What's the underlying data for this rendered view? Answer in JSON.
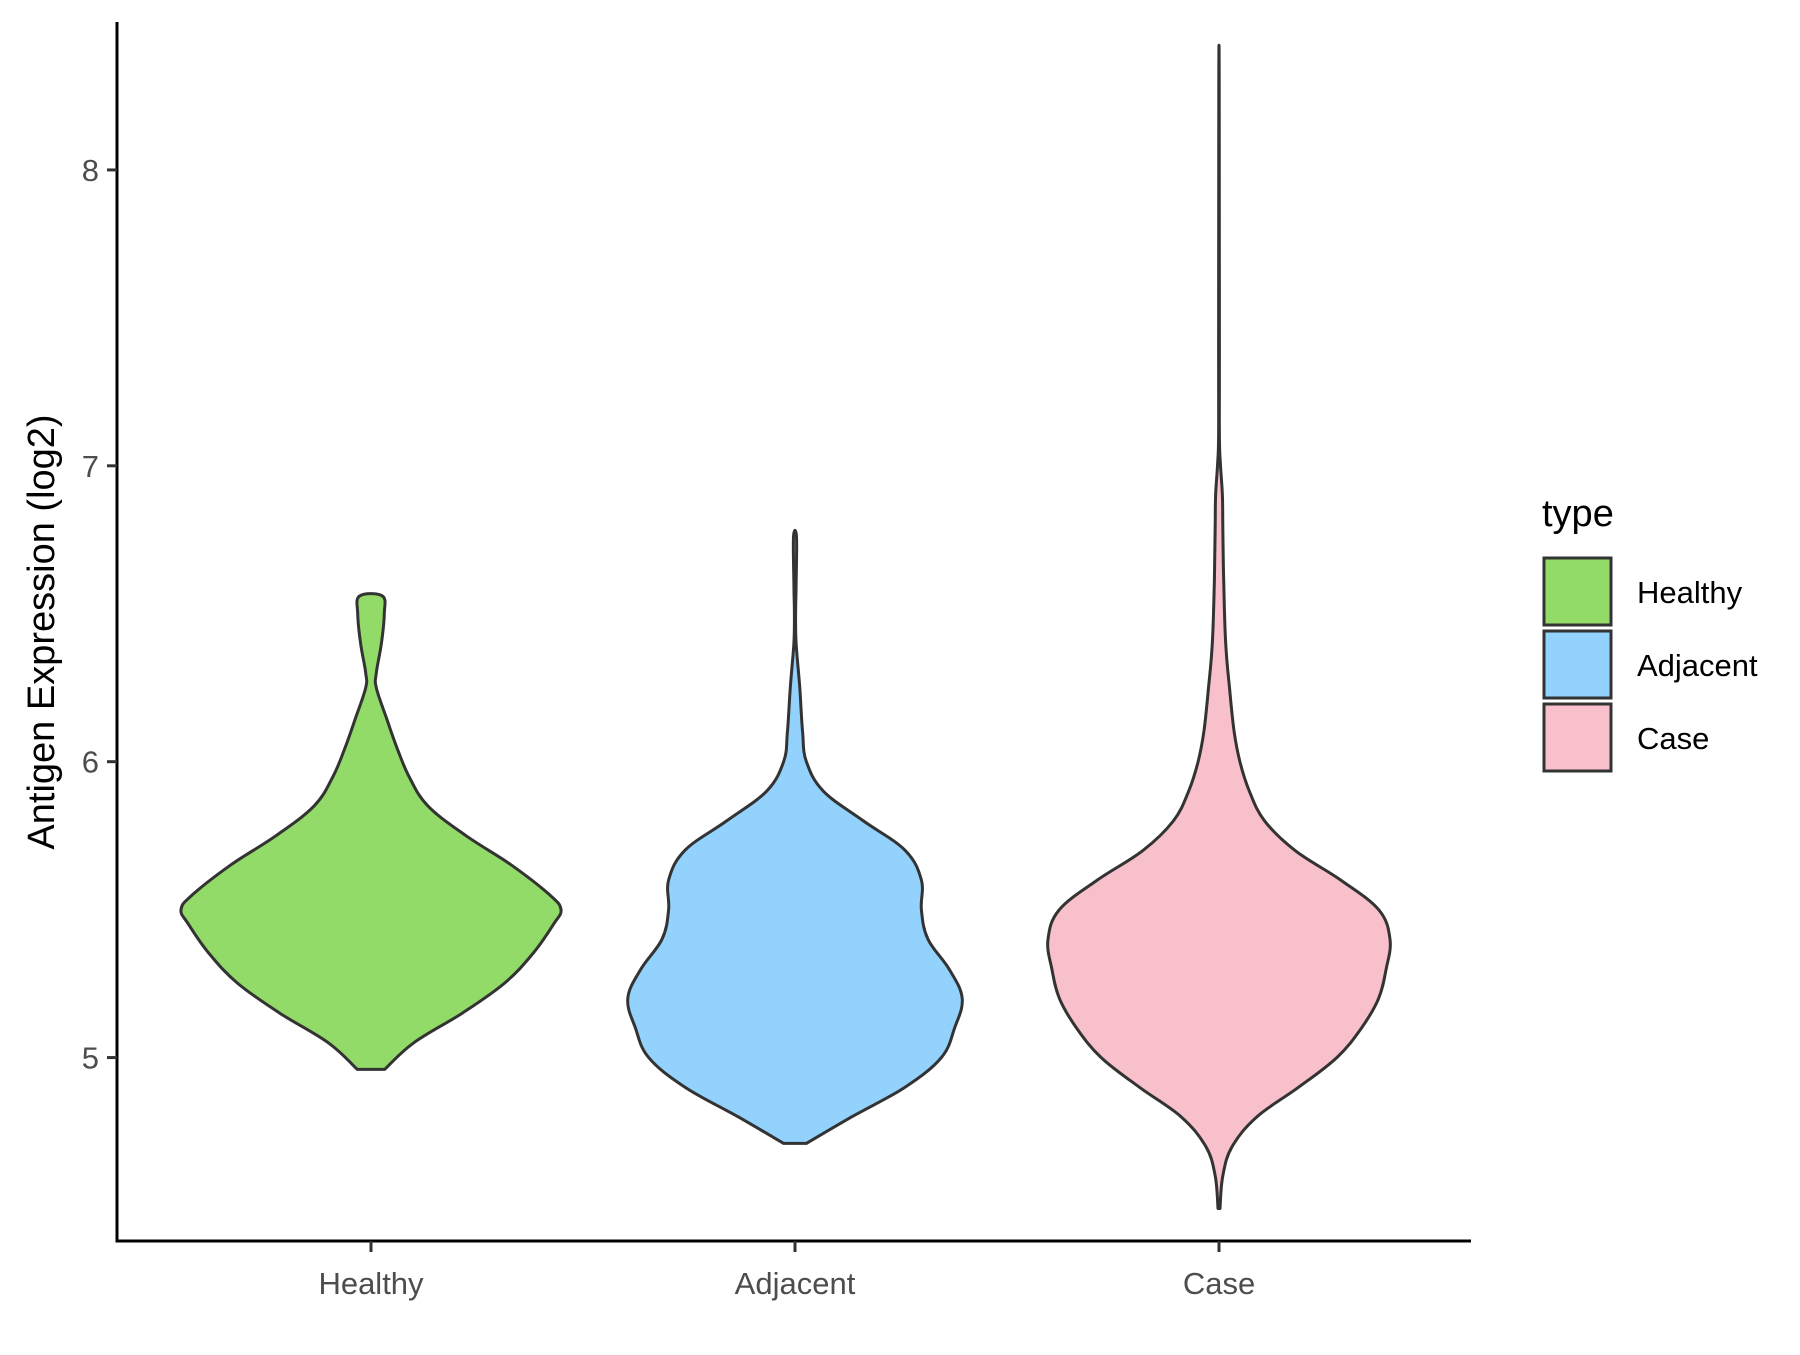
{
  "chart_data": {
    "type": "violin",
    "xlabel": "",
    "ylabel": "Antigen Expression (log2)",
    "categories": [
      "Healthy",
      "Adjacent",
      "Case"
    ],
    "ylim": [
      4.38,
      8.5
    ],
    "yticks": [
      5,
      6,
      7,
      8
    ],
    "legend": {
      "title": "type",
      "placement": "right",
      "entries": [
        "Healthy",
        "Adjacent",
        "Case"
      ]
    },
    "grid": false,
    "series": [
      {
        "category": "Healthy",
        "color": "#93db69",
        "min": 4.96,
        "max": 6.56,
        "density": [
          [
            4.96,
            0.072
          ],
          [
            5.05,
            0.225
          ],
          [
            5.15,
            0.48
          ],
          [
            5.25,
            0.7
          ],
          [
            5.35,
            0.85
          ],
          [
            5.45,
            0.96
          ],
          [
            5.5,
            1.0
          ],
          [
            5.55,
            0.94
          ],
          [
            5.65,
            0.74
          ],
          [
            5.75,
            0.5
          ],
          [
            5.85,
            0.3
          ],
          [
            5.95,
            0.2
          ],
          [
            6.05,
            0.135
          ],
          [
            6.15,
            0.08
          ],
          [
            6.25,
            0.028
          ],
          [
            6.3,
            0.028
          ],
          [
            6.4,
            0.055
          ],
          [
            6.5,
            0.07
          ],
          [
            6.56,
            0.06
          ]
        ]
      },
      {
        "category": "Adjacent",
        "color": "#92d2fd",
        "min": 4.71,
        "max": 6.76,
        "density": [
          [
            4.71,
            0.06
          ],
          [
            4.8,
            0.3
          ],
          [
            4.9,
            0.58
          ],
          [
            5.0,
            0.77
          ],
          [
            5.1,
            0.84
          ],
          [
            5.2,
            0.88
          ],
          [
            5.3,
            0.81
          ],
          [
            5.4,
            0.7
          ],
          [
            5.5,
            0.665
          ],
          [
            5.6,
            0.665
          ],
          [
            5.7,
            0.58
          ],
          [
            5.8,
            0.36
          ],
          [
            5.9,
            0.15
          ],
          [
            6.0,
            0.06
          ],
          [
            6.1,
            0.04
          ],
          [
            6.25,
            0.025
          ],
          [
            6.4,
            0.006
          ],
          [
            6.5,
            0.003
          ],
          [
            6.6,
            0.006
          ],
          [
            6.76,
            0.008
          ]
        ]
      },
      {
        "category": "Case",
        "color": "#f7c0cb",
        "min": 4.49,
        "max": 8.3,
        "density": [
          [
            4.49,
            0.005
          ],
          [
            4.6,
            0.02
          ],
          [
            4.7,
            0.07
          ],
          [
            4.8,
            0.2
          ],
          [
            4.9,
            0.42
          ],
          [
            5.0,
            0.62
          ],
          [
            5.1,
            0.75
          ],
          [
            5.2,
            0.84
          ],
          [
            5.3,
            0.88
          ],
          [
            5.4,
            0.9
          ],
          [
            5.5,
            0.84
          ],
          [
            5.6,
            0.64
          ],
          [
            5.7,
            0.4
          ],
          [
            5.8,
            0.24
          ],
          [
            5.9,
            0.16
          ],
          [
            6.0,
            0.11
          ],
          [
            6.1,
            0.08
          ],
          [
            6.25,
            0.055
          ],
          [
            6.4,
            0.035
          ],
          [
            6.6,
            0.025
          ],
          [
            6.8,
            0.02
          ],
          [
            6.9,
            0.018
          ],
          [
            7.0,
            0.008
          ],
          [
            7.1,
            0.002
          ],
          [
            7.4,
            0.002
          ],
          [
            8.3,
            0.001
          ]
        ]
      }
    ]
  }
}
